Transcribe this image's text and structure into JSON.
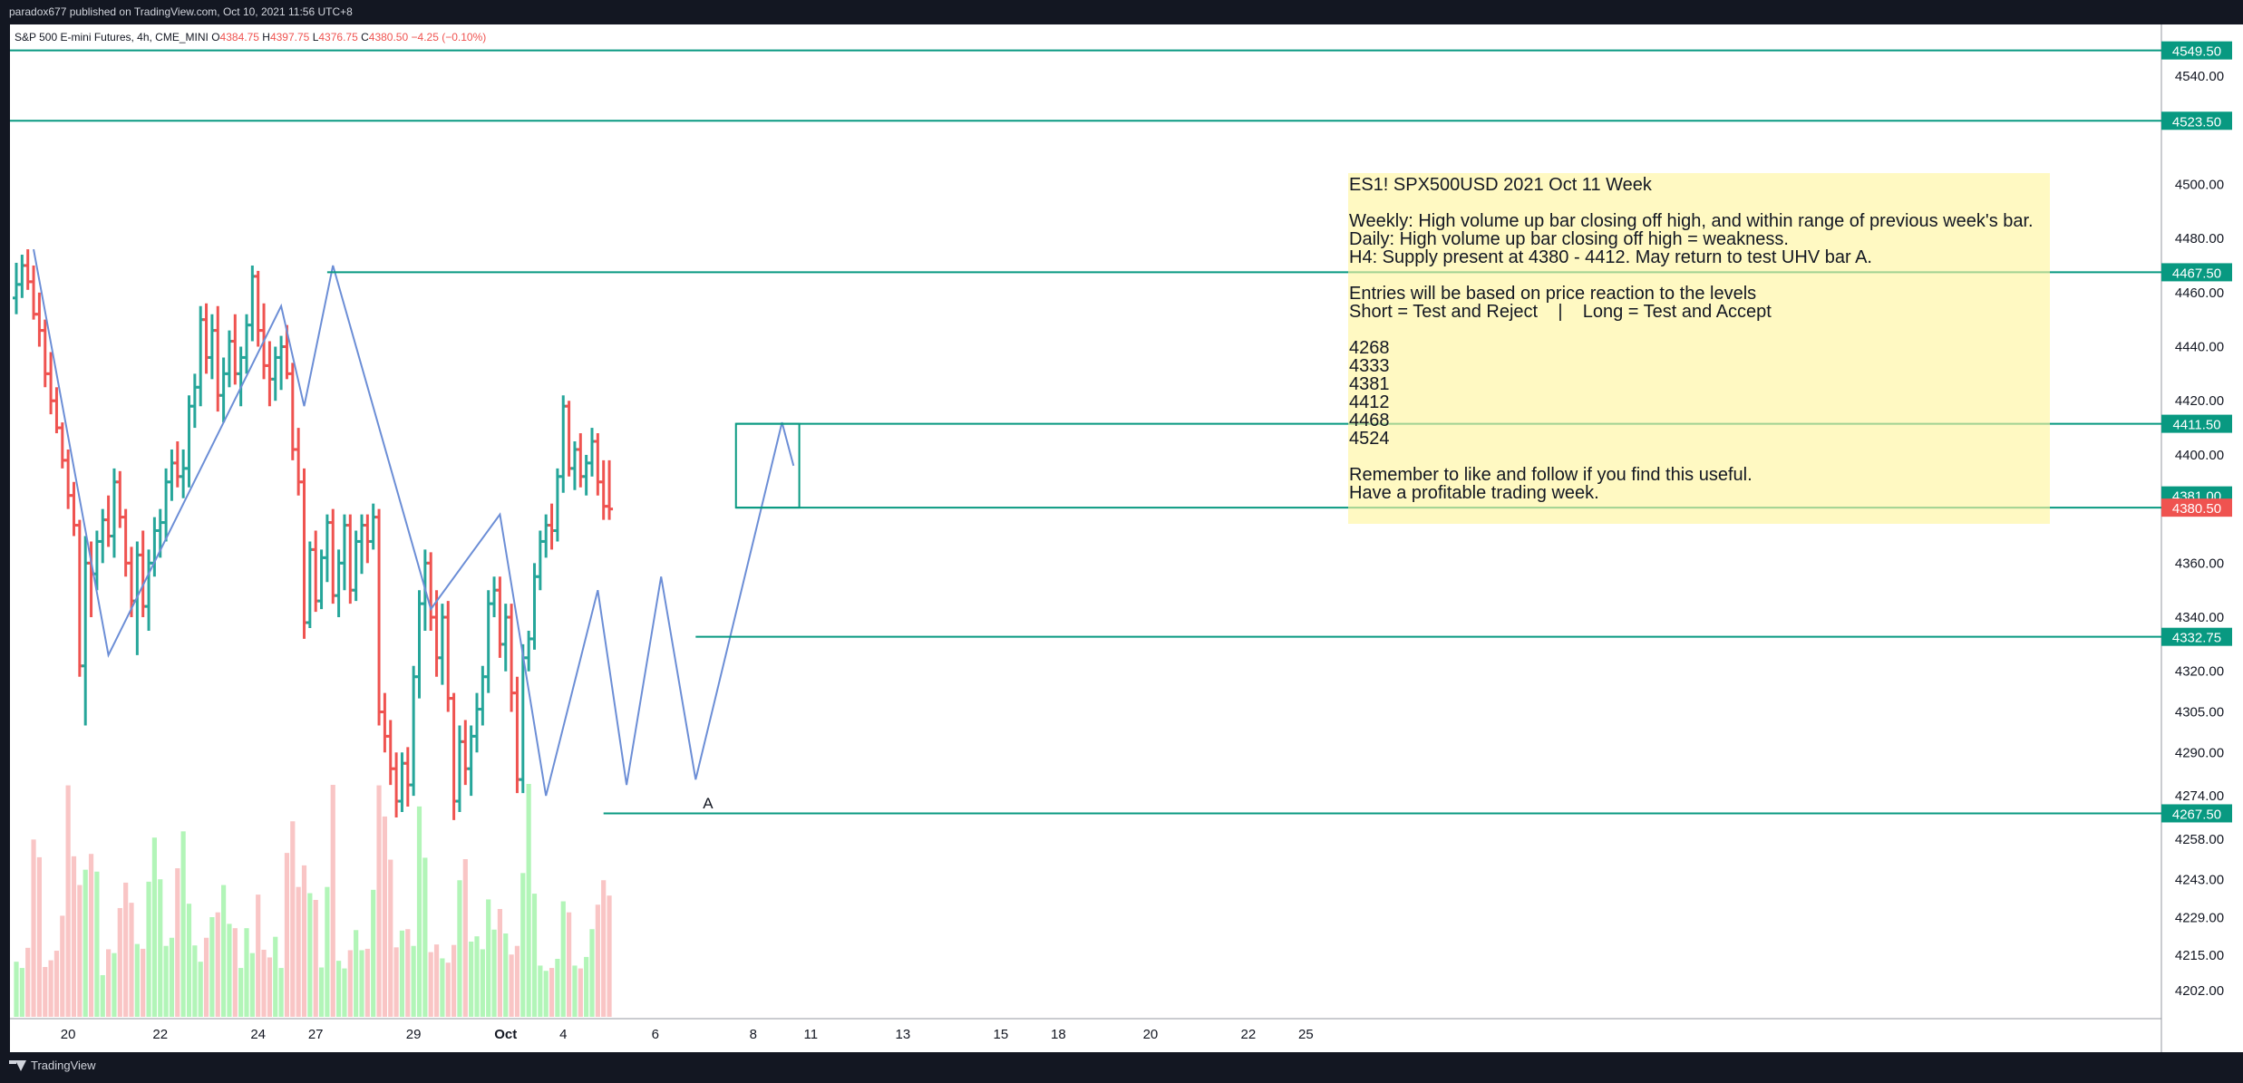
{
  "header": {
    "published": "paradox677 published on TradingView.com, Oct 10, 2021 11:56 UTC+8"
  },
  "legend": {
    "symbol": "S&P 500 E-mini Futures, 4h, CME_MINI",
    "open_label": "O",
    "open": "4384.75",
    "high_label": "H",
    "high": "4397.75",
    "low_label": "L",
    "low": "4376.75",
    "close_label": "C",
    "close": "4380.50",
    "change": "−4.25 (−0.10%)"
  },
  "footer": {
    "brand": "TradingView"
  },
  "annotation": {
    "lines": [
      "ES1! SPX500USD 2021 Oct 11 Week",
      "",
      "Weekly: High volume up bar closing off high, and within range of previous week's bar.",
      "Daily: High volume up bar closing off high = weakness.",
      "H4: Supply present at 4380 - 4412. May return to test UHV bar A.",
      "",
      "Entries will be based on price reaction to the levels",
      "Short = Test and Reject    |    Long = Test and Accept",
      "",
      "4268",
      "4333",
      "4381",
      "4412",
      "4468",
      "4524",
      "",
      "Remember to like and follow if you find this useful.",
      "Have a profitable trading week."
    ],
    "bar_marker": "A"
  },
  "colors": {
    "up": "#26a69a",
    "down": "#ef5350",
    "vol_up": "#b2f5b8",
    "vol_down": "#f9c5c5",
    "level_line": "#089981",
    "zigzag": "#6c8ed6",
    "price_badge": "#089981",
    "last_badge": "#ef5350"
  },
  "chart_data": {
    "type": "ohlc-bar",
    "price_axis": {
      "ticks": [
        4540,
        4523.5,
        4500,
        4480,
        4460,
        4440,
        4420,
        4400,
        4381,
        4360,
        4340,
        4320,
        4305,
        4290,
        4274,
        4258,
        4243,
        4229,
        4215,
        4202
      ],
      "tick_labels": [
        "4540.00",
        "4523.50",
        "4500.00",
        "4480.00",
        "4460.00",
        "4440.00",
        "4420.00",
        "4400.00",
        "4381.00",
        "4360.00",
        "4340.00",
        "4320.00",
        "4305.00",
        "4290.00",
        "4274.00",
        "4258.00",
        "4243.00",
        "4229.00",
        "4215.00",
        "4202.00"
      ],
      "range": [
        4190,
        4555
      ]
    },
    "time_axis": {
      "labels": [
        "20",
        "22",
        "24",
        "27",
        "29",
        "Oct",
        "4",
        "6",
        "8",
        "11",
        "13",
        "15",
        "18",
        "20",
        "22",
        "25"
      ],
      "label_bar_index": [
        9,
        25,
        42,
        52,
        69,
        85,
        95,
        111,
        128,
        138,
        154,
        171,
        181,
        197,
        214,
        224
      ]
    },
    "levels": [
      {
        "price": 4549.5,
        "label": "4549.50",
        "from_bar": -2
      },
      {
        "price": 4523.5,
        "label": "4523.50",
        "from_bar": -2
      },
      {
        "price": 4467.5,
        "label": "4467.50",
        "from_bar": 54
      },
      {
        "price": 4411.5,
        "label": "4411.50",
        "from_bar": 125
      },
      {
        "price": 4332.75,
        "label": "4332.75",
        "from_bar": 118
      },
      {
        "price": 4267.5,
        "label": "4267.50",
        "from_bar": 102
      }
    ],
    "last_price": {
      "price": 4380.5,
      "label": "4380.50"
    },
    "cross_price": {
      "price": 4381.0,
      "label": "4381.00"
    },
    "supply_box": {
      "from_bar": 125,
      "to_bar": 136,
      "top": 4411.5,
      "bottom": 4380.5
    },
    "bars": [
      [
        4458,
        4471,
        4452,
        4463,
        1150
      ],
      [
        4463,
        4474,
        4458,
        4470,
        1020
      ],
      [
        4470,
        4476,
        4461,
        4464,
        1440
      ],
      [
        4464,
        4470,
        4450,
        4452,
        3700
      ],
      [
        4452,
        4460,
        4440,
        4446,
        3330
      ],
      [
        4446,
        4450,
        4425,
        4430,
        1040
      ],
      [
        4430,
        4438,
        4415,
        4420,
        1180
      ],
      [
        4420,
        4425,
        4408,
        4410,
        1380
      ],
      [
        4410,
        4412,
        4395,
        4398,
        2110
      ],
      [
        4398,
        4402,
        4380,
        4385,
        4830
      ],
      [
        4385,
        4390,
        4370,
        4374,
        3350
      ],
      [
        4374,
        4376,
        4318,
        4322,
        2750
      ],
      [
        4322,
        4370,
        4300,
        4360,
        3070
      ],
      [
        4360,
        4368,
        4340,
        4356,
        3400
      ],
      [
        4356,
        4372,
        4350,
        4368,
        3030
      ],
      [
        4368,
        4380,
        4360,
        4376,
        870
      ],
      [
        4376,
        4385,
        4366,
        4370,
        1410
      ],
      [
        4370,
        4395,
        4362,
        4390,
        1330
      ],
      [
        4390,
        4394,
        4373,
        4377,
        2270
      ],
      [
        4377,
        4380,
        4355,
        4360,
        2800
      ],
      [
        4360,
        4366,
        4340,
        4346,
        2380
      ],
      [
        4346,
        4368,
        4326,
        4363,
        1520
      ],
      [
        4363,
        4372,
        4340,
        4344,
        1420
      ],
      [
        4344,
        4365,
        4335,
        4360,
        2820
      ],
      [
        4360,
        4377,
        4355,
        4372,
        3740
      ],
      [
        4372,
        4380,
        4362,
        4375,
        2870
      ],
      [
        4375,
        4395,
        4368,
        4390,
        1480
      ],
      [
        4390,
        4402,
        4383,
        4397,
        1650
      ],
      [
        4397,
        4405,
        4388,
        4392,
        3100
      ],
      [
        4392,
        4402,
        4384,
        4395,
        3870
      ],
      [
        4395,
        4422,
        4388,
        4418,
        2360
      ],
      [
        4418,
        4430,
        4410,
        4425,
        1490
      ],
      [
        4425,
        4455,
        4418,
        4450,
        1150
      ],
      [
        4450,
        4456,
        4430,
        4436,
        1650
      ],
      [
        4436,
        4452,
        4428,
        4446,
        2080
      ],
      [
        4446,
        4455,
        4416,
        4422,
        2180
      ],
      [
        4422,
        4436,
        4412,
        4430,
        2750
      ],
      [
        4430,
        4446,
        4425,
        4442,
        1940
      ],
      [
        4442,
        4452,
        4426,
        4430,
        1850
      ],
      [
        4430,
        4440,
        4418,
        4436,
        1020
      ],
      [
        4436,
        4452,
        4430,
        4448,
        1850
      ],
      [
        4448,
        4470,
        4442,
        4466,
        1330
      ],
      [
        4466,
        4468,
        4440,
        4446,
        2550
      ],
      [
        4446,
        4456,
        4428,
        4433,
        1400
      ],
      [
        4433,
        4442,
        4418,
        4428,
        1240
      ],
      [
        4428,
        4440,
        4420,
        4436,
        1670
      ],
      [
        4436,
        4444,
        4424,
        4440,
        1020
      ],
      [
        4440,
        4448,
        4428,
        4430,
        3420
      ],
      [
        4430,
        4434,
        4398,
        4402,
        4080
      ],
      [
        4402,
        4410,
        4385,
        4390,
        2710
      ],
      [
        4390,
        4395,
        4332,
        4338,
        3160
      ],
      [
        4338,
        4368,
        4336,
        4365,
        2580
      ],
      [
        4365,
        4372,
        4342,
        4346,
        2440
      ],
      [
        4346,
        4365,
        4343,
        4362,
        1030
      ],
      [
        4362,
        4378,
        4353,
        4375,
        2710
      ],
      [
        4375,
        4380,
        4345,
        4348,
        4840
      ],
      [
        4348,
        4365,
        4340,
        4360,
        1170
      ],
      [
        4360,
        4378,
        4350,
        4374,
        1010
      ],
      [
        4374,
        4378,
        4345,
        4350,
        1390
      ],
      [
        4350,
        4372,
        4346,
        4368,
        1810
      ],
      [
        4368,
        4378,
        4356,
        4374,
        1390
      ],
      [
        4374,
        4378,
        4360,
        4368,
        1420
      ],
      [
        4368,
        4382,
        4365,
        4377,
        2650
      ],
      [
        4377,
        4380,
        4300,
        4305,
        4830
      ],
      [
        4305,
        4312,
        4290,
        4296,
        4180
      ],
      [
        4296,
        4302,
        4278,
        4284,
        3280
      ],
      [
        4284,
        4290,
        4266,
        4272,
        1450
      ],
      [
        4272,
        4290,
        4268,
        4286,
        1800
      ],
      [
        4286,
        4292,
        4270,
        4278,
        1830
      ],
      [
        4278,
        4322,
        4274,
        4318,
        1480
      ],
      [
        4318,
        4350,
        4310,
        4345,
        4390
      ],
      [
        4345,
        4365,
        4335,
        4360,
        3320
      ],
      [
        4360,
        4364,
        4335,
        4340,
        1350
      ],
      [
        4340,
        4350,
        4318,
        4325,
        1510
      ],
      [
        4325,
        4345,
        4315,
        4340,
        1220
      ],
      [
        4340,
        4346,
        4305,
        4310,
        1130
      ],
      [
        4310,
        4312,
        4265,
        4272,
        1500
      ],
      [
        4272,
        4300,
        4268,
        4294,
        2850
      ],
      [
        4294,
        4302,
        4278,
        4284,
        3290
      ],
      [
        4284,
        4300,
        4274,
        4296,
        1570
      ],
      [
        4296,
        4312,
        4290,
        4306,
        1680
      ],
      [
        4306,
        4322,
        4300,
        4318,
        1410
      ],
      [
        4318,
        4350,
        4312,
        4345,
        2450
      ],
      [
        4345,
        4355,
        4340,
        4350,
        1820
      ],
      [
        4350,
        4355,
        4325,
        4330,
        2250
      ],
      [
        4330,
        4345,
        4320,
        4340,
        1740
      ],
      [
        4340,
        4345,
        4305,
        4312,
        1300
      ],
      [
        4312,
        4318,
        4275,
        4280,
        1480
      ],
      [
        4280,
        4330,
        4275,
        4325,
        3000
      ],
      [
        4325,
        4335,
        4320,
        4332,
        4860
      ],
      [
        4332,
        4360,
        4328,
        4355,
        2570
      ],
      [
        4355,
        4372,
        4350,
        4368,
        1070
      ],
      [
        4368,
        4378,
        4362,
        4374,
        960
      ],
      [
        4374,
        4382,
        4365,
        4372,
        1020
      ],
      [
        4372,
        4395,
        4368,
        4392,
        1210
      ],
      [
        4392,
        4422,
        4386,
        4418,
        2410
      ],
      [
        4418,
        4420,
        4392,
        4395,
        2180
      ],
      [
        4395,
        4405,
        4387,
        4402,
        1070
      ],
      [
        4402,
        4408,
        4388,
        4392,
        1010
      ],
      [
        4392,
        4400,
        4385,
        4397,
        1250
      ],
      [
        4397,
        4410,
        4392,
        4405,
        1830
      ],
      [
        4405,
        4408,
        4385,
        4390,
        2340
      ],
      [
        4390,
        4398,
        4376,
        4381,
        2850
      ],
      [
        4381,
        4398,
        4376,
        4380,
        2530
      ]
    ],
    "bar_index_offset": 0,
    "zigzag": [
      [
        3,
        4476
      ],
      [
        16,
        4326
      ],
      [
        46,
        4455
      ],
      [
        50,
        4418
      ],
      [
        55,
        4470
      ],
      [
        72,
        4343
      ],
      [
        84,
        4378
      ],
      [
        92,
        4274
      ],
      [
        101,
        4350
      ],
      [
        106,
        4278
      ],
      [
        112,
        4355
      ],
      [
        118,
        4280
      ],
      [
        133,
        4412
      ],
      [
        135,
        4396
      ]
    ],
    "volume_scale_max": 5200
  }
}
